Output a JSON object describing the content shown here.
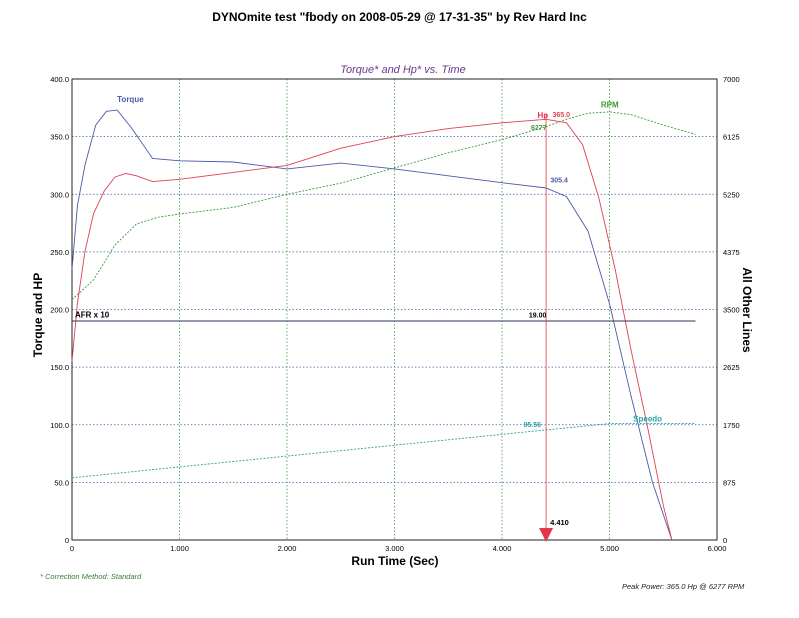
{
  "page": {
    "title": "DYNOmite test \"fbody on 2008-05-29 @ 17-31-35\" by Rev Hard Inc",
    "correction": "* Correction Method: Standard",
    "peak": "Peak Power: 365.0 Hp @ 6277 RPM"
  },
  "colors": {
    "torque": "#4a5aa8",
    "hp": "#e04050",
    "rpm": "#3a9a3a",
    "speedo": "#30a0a0",
    "afr": "#333355",
    "grid_blue": "#4a5aa8",
    "grid_green": "#3a9a3a",
    "marker": "#e03a4a",
    "title_purple": "#6a3a8a"
  },
  "chart_data": {
    "type": "line",
    "title": "Torque* and Hp* vs. Time",
    "xlabel": "Run Time (Sec)",
    "ylabel": "Torque and HP",
    "y2label": "All Other Lines",
    "xlim": [
      0,
      6
    ],
    "ylim": [
      0,
      400
    ],
    "y2lim": [
      0,
      7000
    ],
    "x_ticks": [
      "0",
      "1.000",
      "2.000",
      "3.000",
      "4.000",
      "5.000",
      "6.000"
    ],
    "y_ticks": [
      "0",
      "50.0",
      "100.0",
      "150.0",
      "200.0",
      "250.0",
      "300.0",
      "350.0",
      "400.0"
    ],
    "y2_ticks": [
      "0",
      "875",
      "1750",
      "2625",
      "3500",
      "4375",
      "5250",
      "6125",
      "7000"
    ],
    "grid": true,
    "series": [
      {
        "name": "Torque",
        "axis": "left",
        "color_key": "torque",
        "x": [
          0,
          0.05,
          0.12,
          0.22,
          0.32,
          0.42,
          0.55,
          0.75,
          1.0,
          1.5,
          2.0,
          2.5,
          3.0,
          3.5,
          4.0,
          4.41,
          4.6,
          4.8,
          5.0,
          5.2,
          5.4,
          5.58
        ],
        "y": [
          235,
          290,
          325,
          360,
          372,
          373,
          358,
          331,
          329,
          328,
          322,
          327,
          322,
          316,
          310,
          305.4,
          298,
          268,
          205,
          125,
          50,
          0
        ]
      },
      {
        "name": "Hp",
        "axis": "left",
        "color_key": "hp",
        "x": [
          0,
          0.05,
          0.12,
          0.2,
          0.3,
          0.4,
          0.5,
          0.6,
          0.75,
          1.0,
          1.5,
          2.0,
          2.5,
          3.0,
          3.5,
          4.0,
          4.41,
          4.6,
          4.75,
          4.9,
          5.05,
          5.2,
          5.35,
          5.5,
          5.58
        ],
        "y": [
          155,
          205,
          250,
          283,
          303,
          315,
          318,
          316,
          311,
          313,
          319,
          325,
          340,
          350,
          357,
          362,
          365,
          362,
          343,
          297,
          236,
          165,
          100,
          30,
          0
        ]
      },
      {
        "name": "RPM",
        "axis": "right",
        "color_key": "rpm",
        "x": [
          0,
          0.2,
          0.4,
          0.6,
          0.8,
          1.0,
          1.5,
          2.0,
          2.5,
          3.0,
          3.5,
          4.0,
          4.41,
          4.6,
          4.8,
          5.0,
          5.2,
          5.5,
          5.8
        ],
        "y": [
          3650,
          3950,
          4480,
          4800,
          4900,
          4950,
          5050,
          5250,
          5420,
          5650,
          5880,
          6080,
          6277,
          6390,
          6480,
          6500,
          6460,
          6300,
          6160
        ]
      },
      {
        "name": "Speedo",
        "axis": "left",
        "color_key": "speedo",
        "x": [
          0,
          4.41,
          5.0,
          5.8
        ],
        "y": [
          54,
          95.56,
          101,
          101
        ]
      },
      {
        "name": "AFR x 10",
        "axis": "left",
        "color_key": "afr",
        "x": [
          0,
          5.8
        ],
        "y": [
          190,
          190
        ]
      }
    ],
    "labels": {
      "torque": "Torque",
      "hp": "Hp",
      "hp_value": "365.0",
      "rpm": "RPM",
      "rpm_value": "6277",
      "torque_value": "305.4",
      "afr": "AFR x 10",
      "afr_value": "19.00",
      "speedo": "Speedo",
      "speedo_value": "95.56",
      "marker_time": "4.410"
    },
    "marker_x": 4.41
  }
}
